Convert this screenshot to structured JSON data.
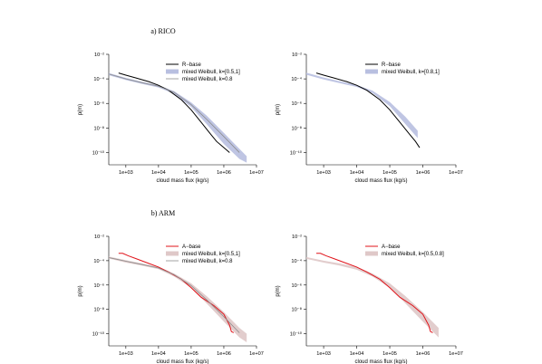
{
  "sections": [
    {
      "title": "a) RICO"
    },
    {
      "title": "b) ARM"
    }
  ],
  "colors": {
    "rico_line": "#000000",
    "arm_line": "#e0131a",
    "band_blue": "#b8bfe0",
    "band_red": "#dfc8c8",
    "gray_line": "#8c8c8c"
  },
  "chart_data": [
    {
      "type": "line",
      "panel": "a-left",
      "xlabel": "cloud mass flux (kg/s)",
      "ylabel": "p(m)",
      "xscale": "log",
      "yscale": "log",
      "xlim": [
        300,
        10000000
      ],
      "ylim": [
        1e-11,
        0.01
      ],
      "xticks": [
        "1e+03",
        "1e+04",
        "1e+05",
        "1e+06",
        "1e+07"
      ],
      "yticks": [
        "10⁻²",
        "10⁻⁴",
        "10⁻⁶",
        "10⁻⁸",
        "10⁻¹⁰"
      ],
      "legend_position": "top-right",
      "series": [
        {
          "name": "R−base",
          "kind": "line",
          "color": "#000000",
          "x": [
            600,
            1000,
            2000,
            5000,
            10000,
            20000,
            50000,
            100000,
            200000,
            400000,
            600000,
            1000000,
            1500000
          ],
          "y": [
            0.0003,
            0.0002,
            0.00012,
            6e-05,
            3e-05,
            1.2e-05,
            2e-06,
            3e-07,
            3e-08,
            3e-09,
            8e-10,
            2.5e-10,
            1e-10
          ]
        },
        {
          "name": "mixed Weibull, k=[0.5,1]",
          "kind": "band",
          "color": "#b8bfe0",
          "x": [
            300,
            1000,
            3000,
            10000,
            30000,
            100000,
            300000,
            1000000,
            3000000,
            5000000
          ],
          "ylow": [
            0.0002,
            8e-05,
            4e-05,
            2e-05,
            6e-06,
            5e-07,
            2e-08,
            5e-10,
            3e-11,
            1.5e-11
          ],
          "yhigh": [
            0.0003,
            0.00012,
            6e-05,
            3e-05,
            1e-05,
            1.2e-06,
            1e-07,
            4e-09,
            2e-10,
            5e-11
          ]
        },
        {
          "name": "mixed Weibull, k=0.8",
          "kind": "line",
          "color": "#8c8c8c",
          "x": [
            300,
            1000,
            3000,
            10000,
            30000,
            100000,
            300000,
            1000000,
            3000000
          ],
          "y": [
            0.00025,
            0.0001,
            5e-05,
            2.5e-05,
            8e-06,
            8e-07,
            5e-08,
            2e-09,
            1e-10
          ]
        }
      ]
    },
    {
      "type": "line",
      "panel": "a-right",
      "xlabel": "cloud mass flux (kg/s)",
      "ylabel": "p(m)",
      "xscale": "log",
      "yscale": "log",
      "xlim": [
        300,
        10000000
      ],
      "ylim": [
        1e-11,
        0.01
      ],
      "xticks": [
        "1e+03",
        "1e+04",
        "1e+05",
        "1e+06",
        "1e+07"
      ],
      "yticks": [
        "10⁻²",
        "10⁻⁴",
        "10⁻⁶",
        "10⁻⁸",
        "10⁻¹⁰"
      ],
      "legend_position": "top-right",
      "series": [
        {
          "name": "R−base",
          "kind": "line",
          "color": "#000000",
          "x": [
            600,
            1000,
            2000,
            5000,
            10000,
            20000,
            50000,
            100000,
            200000,
            400000,
            600000,
            800000
          ],
          "y": [
            0.0003,
            0.0002,
            0.00012,
            6e-05,
            3e-05,
            1.2e-05,
            2e-06,
            3e-07,
            3e-08,
            3e-09,
            8e-10,
            2.5e-10
          ]
        },
        {
          "name": "mixed Weibull, k=[0.8,1]",
          "kind": "band",
          "color": "#b8bfe0",
          "x": [
            300,
            1000,
            3000,
            10000,
            30000,
            100000,
            300000,
            700000
          ],
          "ylow": [
            0.00022,
            9e-05,
            4.5e-05,
            2.2e-05,
            7e-06,
            6e-07,
            2e-08,
            1.5e-09
          ],
          "yhigh": [
            0.00032,
            0.00013,
            6.5e-05,
            3.2e-05,
            1.1e-05,
            1.3e-06,
            8e-08,
            6e-09
          ]
        }
      ]
    },
    {
      "type": "line",
      "panel": "b-left",
      "xlabel": "cloud mass flux (kg/s)",
      "ylabel": "p(m)",
      "xscale": "log",
      "yscale": "log",
      "xlim": [
        300,
        10000000
      ],
      "ylim": [
        1e-11,
        0.01
      ],
      "xticks": [
        "1e+03",
        "1e+04",
        "1e+05",
        "1e+06",
        "1e+07"
      ],
      "yticks": [
        "10⁻²",
        "10⁻⁴",
        "10⁻⁶",
        "10⁻⁸",
        "10⁻¹⁰"
      ],
      "legend_position": "top-right",
      "series": [
        {
          "name": "A−base",
          "kind": "line",
          "color": "#e0131a",
          "x": [
            600,
            800,
            1200,
            2000,
            5000,
            10000,
            20000,
            50000,
            100000,
            200000,
            500000,
            1000000,
            1500000,
            1700000,
            2000000
          ],
          "y": [
            0.0004,
            0.0004,
            0.00025,
            0.00015,
            6e-05,
            3e-05,
            1.2e-05,
            3e-06,
            6e-07,
            1e-07,
            2e-08,
            4e-09,
            5e-10,
            1.5e-10,
            1.2e-10
          ]
        },
        {
          "name": "mixed Weibull, k=[0.5,1]",
          "kind": "band",
          "color": "#dfc8c8",
          "x": [
            300,
            1000,
            3000,
            10000,
            30000,
            100000,
            300000,
            1000000,
            3000000,
            5000000
          ],
          "ylow": [
            0.00015,
            7e-05,
            4e-05,
            2e-05,
            5e-06,
            6e-07,
            3e-08,
            1e-09,
            5e-11,
            2e-11
          ],
          "yhigh": [
            0.00022,
            0.00011,
            6e-05,
            3e-05,
            9e-06,
            1.4e-06,
            1.2e-07,
            6e-09,
            3e-10,
            1e-10
          ]
        },
        {
          "name": "mixed Weibull, k=0.8",
          "kind": "line",
          "color": "#8c8c8c",
          "x": [
            300,
            1000,
            3000,
            10000,
            30000,
            100000,
            300000,
            1000000,
            3000000
          ],
          "y": [
            0.00018,
            9e-05,
            5e-05,
            2.5e-05,
            7e-06,
            9e-07,
            6e-08,
            2.5e-09,
            1.2e-10
          ]
        }
      ]
    },
    {
      "type": "line",
      "panel": "b-right",
      "xlabel": "cloud mass flux (kg/s)",
      "ylabel": "p(m)",
      "xscale": "log",
      "yscale": "log",
      "xlim": [
        300,
        10000000
      ],
      "ylim": [
        1e-11,
        0.01
      ],
      "xticks": [
        "1e+03",
        "1e+04",
        "1e+05",
        "1e+06",
        "1e+07"
      ],
      "yticks": [
        "10⁻²",
        "10⁻⁴",
        "10⁻⁶",
        "10⁻⁸",
        "10⁻¹⁰"
      ],
      "legend_position": "top-right",
      "series": [
        {
          "name": "A−base",
          "kind": "line",
          "color": "#e0131a",
          "x": [
            600,
            800,
            1200,
            2000,
            5000,
            10000,
            20000,
            50000,
            100000,
            200000,
            500000,
            1000000,
            1500000,
            1700000,
            2000000
          ],
          "y": [
            0.0004,
            0.0004,
            0.00025,
            0.00015,
            6e-05,
            3e-05,
            1.2e-05,
            3e-06,
            6e-07,
            1e-07,
            2e-08,
            4e-09,
            5e-10,
            1.5e-10,
            1.2e-10
          ]
        },
        {
          "name": "mixed Weibull, k=[0.5,0.8]",
          "kind": "band",
          "color": "#dfc8c8",
          "x": [
            300,
            1000,
            3000,
            10000,
            30000,
            100000,
            300000,
            1000000,
            3000000
          ],
          "ylow": [
            0.00014,
            7e-05,
            4e-05,
            1.8e-05,
            5e-06,
            6e-07,
            3e-08,
            1e-09,
            5e-11
          ],
          "yhigh": [
            0.0002,
            0.0001,
            6e-05,
            3e-05,
            9e-06,
            1.4e-06,
            1.2e-07,
            6e-09,
            3e-10
          ]
        }
      ]
    }
  ]
}
